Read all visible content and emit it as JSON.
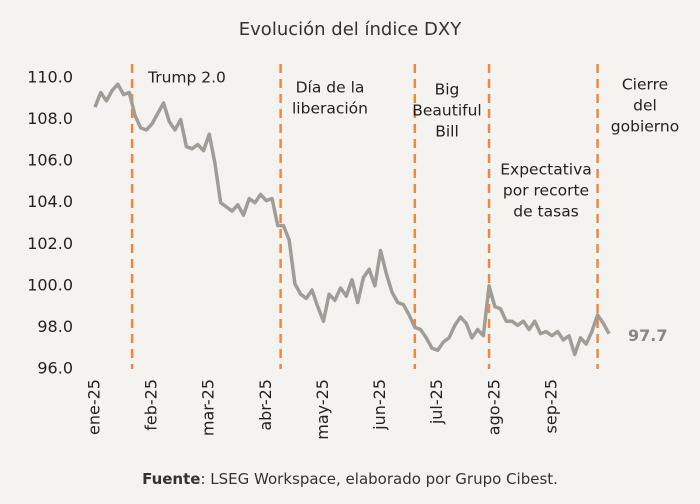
{
  "chart_data": {
    "type": "line",
    "title": "Evolución del índice DXY",
    "source_label": "Fuente",
    "source_text": ": LSEG Workspace, elaborado por Grupo Cibest.",
    "xlim": [
      0,
      9
    ],
    "xticks": [
      {
        "value": 0,
        "label": "ene-25"
      },
      {
        "value": 1,
        "label": "feb-25"
      },
      {
        "value": 2,
        "label": "mar-25"
      },
      {
        "value": 3,
        "label": "abr-25"
      },
      {
        "value": 4,
        "label": "may-25"
      },
      {
        "value": 5,
        "label": "jun-25"
      },
      {
        "value": 6,
        "label": "jul-25"
      },
      {
        "value": 7,
        "label": "ago-25"
      },
      {
        "value": 8,
        "label": "sep-25"
      }
    ],
    "ylim": [
      96,
      110
    ],
    "yticks": [
      {
        "value": 96,
        "label": "96.0"
      },
      {
        "value": 98,
        "label": "98.0"
      },
      {
        "value": 100,
        "label": "100.0"
      },
      {
        "value": 102,
        "label": "102.0"
      },
      {
        "value": 104,
        "label": "104.0"
      },
      {
        "value": 106,
        "label": "106.0"
      },
      {
        "value": 108,
        "label": "108.0"
      },
      {
        "value": 110,
        "label": "110.0"
      }
    ],
    "x": [
      0,
      0.1,
      0.2,
      0.3,
      0.4,
      0.5,
      0.6,
      0.7,
      0.8,
      0.9,
      1.0,
      1.1,
      1.2,
      1.3,
      1.4,
      1.5,
      1.6,
      1.7,
      1.8,
      1.9,
      2.0,
      2.1,
      2.2,
      2.3,
      2.4,
      2.5,
      2.6,
      2.7,
      2.8,
      2.9,
      3.0,
      3.1,
      3.2,
      3.3,
      3.4,
      3.5,
      3.6,
      3.7,
      3.8,
      3.9,
      4.0,
      4.1,
      4.2,
      4.3,
      4.4,
      4.5,
      4.6,
      4.7,
      4.8,
      4.9,
      5.0,
      5.1,
      5.2,
      5.3,
      5.4,
      5.5,
      5.6,
      5.7,
      5.8,
      5.9,
      6.0,
      6.1,
      6.2,
      6.3,
      6.4,
      6.5,
      6.6,
      6.7,
      6.8,
      6.9,
      7.0,
      7.1,
      7.2,
      7.3,
      7.4,
      7.5,
      7.6,
      7.7,
      7.8,
      7.9,
      8.0,
      8.1,
      8.2,
      8.3,
      8.4,
      8.5,
      8.6,
      8.7,
      8.8,
      8.9,
      9.0
    ],
    "series": [
      {
        "name": "DXY",
        "color": "#a19d96",
        "values": [
          108.6,
          109.3,
          108.9,
          109.4,
          109.7,
          109.2,
          109.3,
          108.2,
          107.6,
          107.5,
          107.8,
          108.3,
          108.8,
          107.9,
          107.5,
          108.0,
          106.7,
          106.6,
          106.8,
          106.5,
          107.3,
          105.9,
          104.0,
          103.8,
          103.6,
          103.9,
          103.4,
          104.2,
          104.0,
          104.4,
          104.1,
          104.2,
          102.9,
          102.9,
          102.2,
          100.1,
          99.6,
          99.4,
          99.8,
          99.0,
          98.3,
          99.6,
          99.3,
          99.9,
          99.5,
          100.3,
          99.2,
          100.4,
          100.8,
          100.0,
          101.7,
          100.6,
          99.7,
          99.2,
          99.1,
          98.6,
          98.0,
          97.9,
          97.5,
          97.0,
          96.9,
          97.3,
          97.5,
          98.1,
          98.5,
          98.2,
          97.5,
          97.9,
          97.6,
          100.0,
          99.0,
          98.9,
          98.3,
          98.3,
          98.1,
          98.3,
          97.9,
          98.3,
          97.7,
          97.8,
          97.6,
          97.8,
          97.4,
          97.6,
          96.7,
          97.5,
          97.2,
          97.8,
          98.6,
          98.2,
          97.7
        ],
        "end_label": "97.7"
      }
    ],
    "events": [
      {
        "x": 0.65,
        "label": [
          "Trump 2.0"
        ]
      },
      {
        "x": 3.25,
        "label": [
          "Día de la",
          "liberación"
        ]
      },
      {
        "x": 5.6,
        "label": [
          "Big",
          "Beautiful",
          "Bill"
        ]
      },
      {
        "x": 6.9,
        "label": [
          "Expectativa",
          "por recorte",
          "de tasas"
        ]
      },
      {
        "x": 8.8,
        "label": [
          "Cierre",
          "del",
          "gobierno"
        ]
      }
    ],
    "event_color": "#f0883c"
  }
}
